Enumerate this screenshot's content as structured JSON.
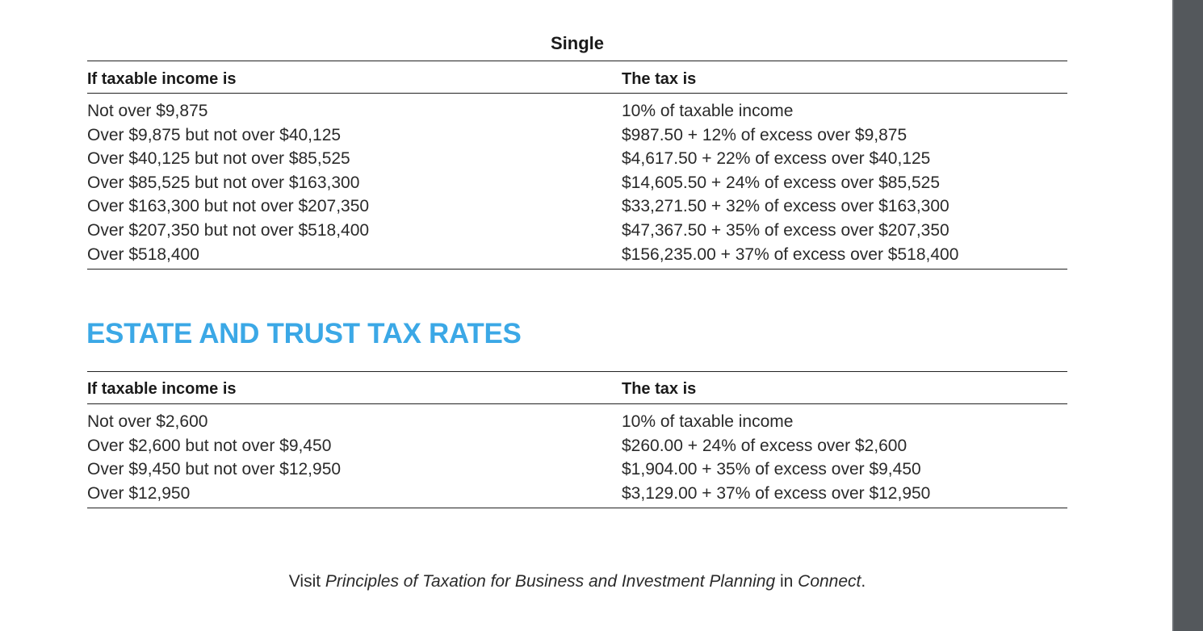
{
  "single_table": {
    "caption": "Single",
    "col_income": "If taxable income is",
    "col_tax": "The tax is",
    "rows": [
      {
        "income": "Not over $9,875",
        "tax": "10% of taxable income"
      },
      {
        "income": "Over $9,875 but not over $40,125",
        "tax": "$987.50 + 12% of excess over $9,875"
      },
      {
        "income": "Over $40,125 but not over $85,525",
        "tax": "$4,617.50 + 22% of excess over $40,125"
      },
      {
        "income": "Over $85,525 but not over $163,300",
        "tax": "$14,605.50 + 24% of excess over $85,525"
      },
      {
        "income": "Over $163,300 but not over $207,350",
        "tax": "$33,271.50 + 32% of excess over $163,300"
      },
      {
        "income": "Over $207,350 but not over $518,400",
        "tax": "$47,367.50 + 35% of excess over $207,350"
      },
      {
        "income": "Over $518,400",
        "tax": "$156,235.00 + 37% of excess over $518,400"
      }
    ]
  },
  "estate_section": {
    "heading": "ESTATE AND TRUST TAX RATES",
    "heading_color": "#3ba8e6",
    "col_income": "If taxable income is",
    "col_tax": "The tax is",
    "rows": [
      {
        "income": "Not over $2,600",
        "tax": "10% of taxable income"
      },
      {
        "income": "Over $2,600 but not over $9,450",
        "tax": "$260.00 + 24% of excess over $2,600"
      },
      {
        "income": "Over $9,450 but not over $12,950",
        "tax": "$1,904.00 + 35% of excess over $9,450"
      },
      {
        "income": "Over $12,950",
        "tax": "$3,129.00 + 37% of excess over $12,950"
      }
    ]
  },
  "footer": {
    "prefix": "Visit ",
    "book_title": "Principles of Taxation for Business and Investment Planning",
    "middle": " in ",
    "platform": "Connect",
    "suffix": "."
  }
}
